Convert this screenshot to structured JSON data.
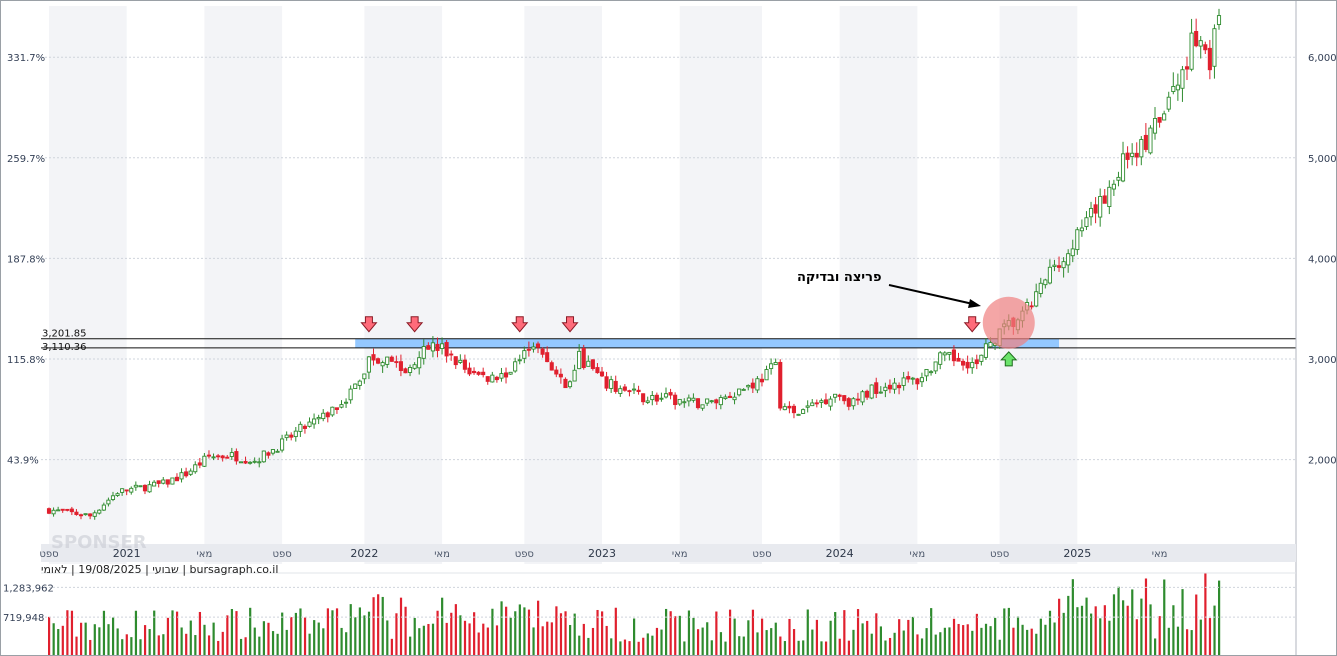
{
  "source_line": "שבועי | 19/08/2025 | לאומי | bursagraph.co.il",
  "watermark": "SPONSER",
  "annotation": "פריצה ובדיקה",
  "colors": {
    "up": "#2e8b2e",
    "down": "#e0202e",
    "zone": "#8ec5ff",
    "signal_down": "#ff6b7a",
    "signal_up": "#6be36b",
    "circle": "#f08080"
  },
  "chart_data": {
    "type": "candlestick",
    "title": "",
    "y_right_ticks": [
      {
        "value": 2000,
        "label": "2,000"
      },
      {
        "value": 3000,
        "label": "3,000"
      },
      {
        "value": 4000,
        "label": "4,000"
      },
      {
        "value": 5000,
        "label": "5,000"
      },
      {
        "value": 6000,
        "label": "6,000"
      }
    ],
    "y_left_ticks": [
      {
        "value": 2000,
        "label": "43.9%"
      },
      {
        "value": 3000,
        "label": "115.8%"
      },
      {
        "value": 4000,
        "label": "187.8%"
      },
      {
        "value": 5000,
        "label": "259.7%"
      },
      {
        "value": 6000,
        "label": "331.7%"
      }
    ],
    "ylim": [
      1100,
      6500
    ],
    "x_ticks": [
      {
        "label": "ספט",
        "week": 0,
        "kind": "month"
      },
      {
        "label": "2021",
        "week": 17,
        "kind": "year"
      },
      {
        "label": "מאי",
        "week": 34,
        "kind": "month"
      },
      {
        "label": "ספט",
        "week": 51,
        "kind": "month"
      },
      {
        "label": "2022",
        "week": 69,
        "kind": "year"
      },
      {
        "label": "מאי",
        "week": 86,
        "kind": "month"
      },
      {
        "label": "ספט",
        "week": 104,
        "kind": "month"
      },
      {
        "label": "2023",
        "week": 121,
        "kind": "year"
      },
      {
        "label": "מאי",
        "week": 138,
        "kind": "month"
      },
      {
        "label": "ספט",
        "week": 156,
        "kind": "month"
      },
      {
        "label": "2024",
        "week": 173,
        "kind": "year"
      },
      {
        "label": "מאי",
        "week": 190,
        "kind": "month"
      },
      {
        "label": "ספט",
        "week": 208,
        "kind": "month"
      },
      {
        "label": "2025",
        "week": 225,
        "kind": "year"
      },
      {
        "label": "מאי",
        "week": 243,
        "kind": "month"
      }
    ],
    "close_path": [
      [
        0,
        1500
      ],
      [
        5,
        1470
      ],
      [
        9,
        1440
      ],
      [
        15,
        1680
      ],
      [
        20,
        1720
      ],
      [
        25,
        1760
      ],
      [
        30,
        1860
      ],
      [
        35,
        2030
      ],
      [
        40,
        2040
      ],
      [
        45,
        1990
      ],
      [
        50,
        2130
      ],
      [
        55,
        2300
      ],
      [
        60,
        2420
      ],
      [
        64,
        2580
      ],
      [
        68,
        2770
      ],
      [
        70,
        3000
      ],
      [
        72,
        3000
      ],
      [
        74,
        3050
      ],
      [
        78,
        2850
      ],
      [
        82,
        3150
      ],
      [
        86,
        3100
      ],
      [
        90,
        2940
      ],
      [
        94,
        2830
      ],
      [
        98,
        2820
      ],
      [
        102,
        2920
      ],
      [
        104,
        3150
      ],
      [
        106,
        3160
      ],
      [
        110,
        2900
      ],
      [
        113,
        2700
      ],
      [
        116,
        3020
      ],
      [
        119,
        2890
      ],
      [
        121,
        2770
      ],
      [
        125,
        2700
      ],
      [
        130,
        2620
      ],
      [
        135,
        2600
      ],
      [
        140,
        2560
      ],
      [
        145,
        2570
      ],
      [
        150,
        2670
      ],
      [
        155,
        2780
      ],
      [
        159,
        2930
      ],
      [
        160,
        2570
      ],
      [
        163,
        2440
      ],
      [
        168,
        2560
      ],
      [
        172,
        2660
      ],
      [
        176,
        2560
      ],
      [
        180,
        2700
      ],
      [
        185,
        2760
      ],
      [
        190,
        2790
      ],
      [
        195,
        3000
      ],
      [
        200,
        3000
      ],
      [
        203,
        2930
      ],
      [
        206,
        3170
      ],
      [
        210,
        3330
      ],
      [
        213,
        3420
      ],
      [
        216,
        3620
      ],
      [
        220,
        3950
      ],
      [
        224,
        4150
      ],
      [
        228,
        4400
      ],
      [
        232,
        4700
      ],
      [
        236,
        5050
      ],
      [
        240,
        5130
      ],
      [
        244,
        5450
      ],
      [
        248,
        5850
      ],
      [
        250,
        6170
      ],
      [
        252,
        6220
      ],
      [
        254,
        5980
      ],
      [
        256,
        6350
      ]
    ],
    "volume_ticks": [
      {
        "value": 719948,
        "label": "719,948"
      },
      {
        "value": 1283962,
        "label": "1,283,962"
      }
    ],
    "resistance_levels": [
      {
        "value": 3201.85,
        "label": "3,201.85"
      },
      {
        "value": 3110.36,
        "label": "3,110.36"
      }
    ],
    "signals": [
      {
        "week": 70,
        "type": "down"
      },
      {
        "week": 80,
        "type": "down"
      },
      {
        "week": 103,
        "type": "down"
      },
      {
        "week": 114,
        "type": "down"
      },
      {
        "week": 202,
        "type": "down"
      },
      {
        "week": 210,
        "type": "up"
      }
    ],
    "breakout_circle_week": 210,
    "zone": {
      "from": 3110.36,
      "to": 3201.85,
      "start_week": 67,
      "end_week": 221
    }
  }
}
